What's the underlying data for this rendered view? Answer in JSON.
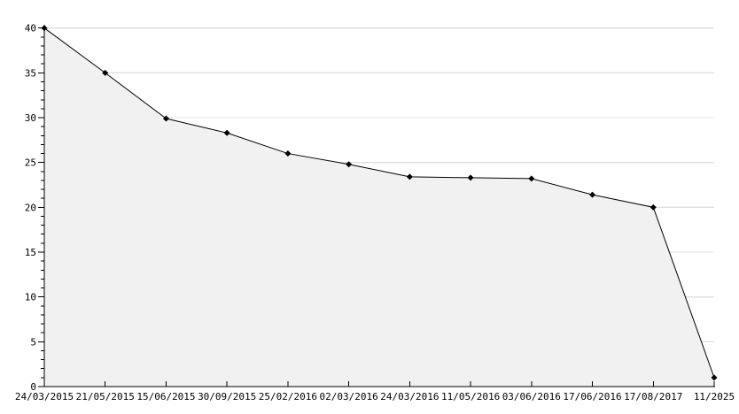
{
  "chart_data": {
    "type": "area",
    "title": "",
    "xlabel": "",
    "ylabel": "",
    "x_labels": [
      "24/03/2015",
      "21/05/2015",
      "15/06/2015",
      "30/09/2015",
      "25/02/2016",
      "02/03/2016",
      "24/03/2016",
      "11/05/2016",
      "03/06/2016",
      "17/06/2016",
      "17/08/2017",
      "11/2025"
    ],
    "values": [
      40,
      35,
      29.9,
      28.3,
      26,
      24.8,
      23.4,
      23.3,
      23.2,
      21.4,
      20,
      1
    ],
    "y_tick_labels": [
      "0",
      "5",
      "10",
      "15",
      "20",
      "25",
      "30",
      "35",
      "40"
    ],
    "ylim": [
      0,
      40
    ],
    "y_major_step": 5,
    "y_minor_step": 1,
    "grid": "horizontal-major",
    "legend": "none",
    "marker": "diamond",
    "colors": {
      "background": "#ffffff",
      "gridline": "#e0e0e0",
      "area_fill": "#f1f1f1",
      "line": "#000000",
      "marker": "#000000",
      "axis": "#000000",
      "label": "#000000"
    }
  }
}
